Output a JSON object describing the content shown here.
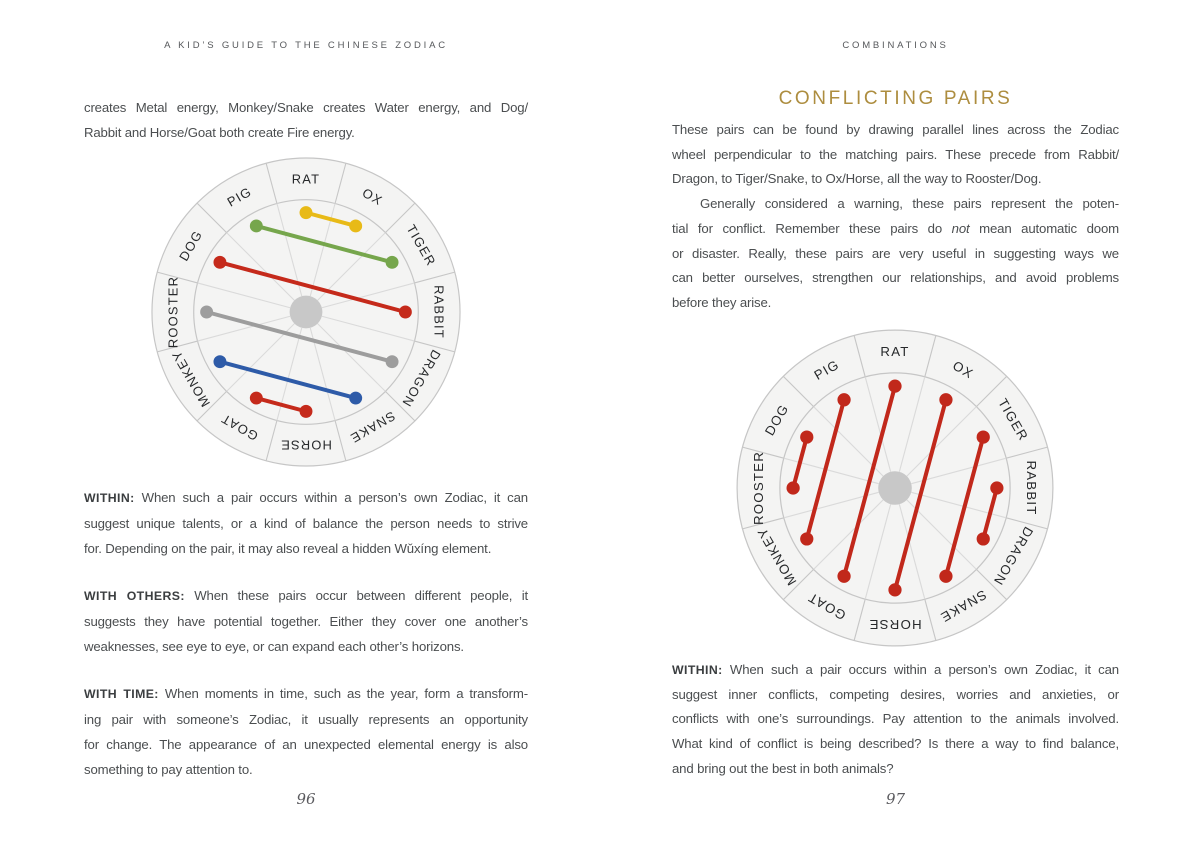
{
  "colors": {
    "accent_gold": "#ad8d3f",
    "body_text": "#4b4e50",
    "wheel_fill": "#f4f4f3",
    "wheel_stroke": "#c6c6c6",
    "wheel_spoke": "#dadada",
    "wheel_hub": "#c8c8c8",
    "pair_red": "#c52a1b",
    "pair_yellow": "#e8ba17",
    "pair_green": "#76a64c",
    "pair_gray": "#9d9d9d",
    "pair_blue": "#2e5ba8"
  },
  "left_page": {
    "header": "A KID’S GUIDE TO THE CHINESE ZODIAC",
    "intro": {
      "lines": [
        [
          "creates Metal energy, Monkey/Snake creates Water energy, and Dog/"
        ],
        [
          "Rabbit and Horse/Goat both create Fire energy."
        ]
      ]
    },
    "wheel": {
      "name": "transforming-pairs-wheel",
      "labels": [
        "RAT",
        "OX",
        "TIGER",
        "RABBIT",
        "DRAGON",
        "SNAKE",
        "HORSE",
        "GOAT",
        "MONKEY",
        "ROOSTER",
        "DOG",
        "PIG"
      ],
      "pairs": [
        {
          "from": "RAT",
          "to": "OX",
          "color": "#e8ba17"
        },
        {
          "from": "PIG",
          "to": "TIGER",
          "color": "#76a64c"
        },
        {
          "from": "DOG",
          "to": "RABBIT",
          "color": "#c52a1b"
        },
        {
          "from": "ROOSTER",
          "to": "DRAGON",
          "color": "#9d9d9d"
        },
        {
          "from": "MONKEY",
          "to": "SNAKE",
          "color": "#2e5ba8"
        },
        {
          "from": "GOAT",
          "to": "HORSE",
          "color": "#c52a1b"
        }
      ]
    },
    "sections": [
      {
        "label": "WITHIN:",
        "lines": [
          [
            "When such a pair occurs within a person’s own Zodiac, it can"
          ],
          [
            "suggest unique talents, or a kind of balance the person needs to strive"
          ],
          [
            "for. Depending on the pair, it may also reveal a hidden Wǔxíng element."
          ]
        ]
      },
      {
        "label": "WITH OTHERS:",
        "lines": [
          [
            "When these pairs occur between different people, it"
          ],
          [
            "suggests they have potential together. Either they cover one another’s"
          ],
          [
            "weaknesses, see eye to eye, or can expand each other’s horizons."
          ]
        ]
      },
      {
        "label": "WITH TIME:",
        "lines": [
          [
            "When moments in time, such as the year, form a transform-"
          ],
          [
            "ing pair with someone’s Zodiac, it usually represents an opportunity"
          ],
          [
            "for change. The appearance of an unexpected elemental energy is also"
          ],
          [
            "something to pay attention to."
          ]
        ]
      }
    ],
    "page_number": "96"
  },
  "right_page": {
    "header": "COMBINATIONS",
    "title": "CONFLICTING PAIRS",
    "paragraphs": [
      {
        "lines": [
          [
            "These pairs can be found by drawing parallel lines across the Zodiac"
          ],
          [
            "wheel perpendicular to the matching pairs. These precede from Rabbit/"
          ],
          [
            "Dragon, to Tiger/Snake, to Ox/Horse, all the way to Rooster/Dog."
          ]
        ]
      },
      {
        "indent": true,
        "lines": [
          [
            "Generally considered a warning, these pairs represent the poten-"
          ],
          [
            "tial for conflict. Remember these pairs do ",
            {
              "t": "not",
              "i": true
            },
            " mean automatic doom"
          ],
          [
            "or disaster. Really, these pairs are very useful in suggesting ways we"
          ],
          [
            "can better ourselves, strengthen our relationships, and avoid problems"
          ],
          [
            "before they arise."
          ]
        ]
      }
    ],
    "wheel": {
      "name": "conflicting-pairs-wheel",
      "labels": [
        "RAT",
        "OX",
        "TIGER",
        "RABBIT",
        "DRAGON",
        "SNAKE",
        "HORSE",
        "GOAT",
        "MONKEY",
        "ROOSTER",
        "DOG",
        "PIG"
      ],
      "pairs": [
        {
          "from": "DOG",
          "to": "ROOSTER",
          "color": "#c1281b"
        },
        {
          "from": "PIG",
          "to": "MONKEY",
          "color": "#c1281b"
        },
        {
          "from": "RAT",
          "to": "GOAT",
          "color": "#c1281b"
        },
        {
          "from": "OX",
          "to": "HORSE",
          "color": "#c1281b"
        },
        {
          "from": "TIGER",
          "to": "SNAKE",
          "color": "#c1281b"
        },
        {
          "from": "RABBIT",
          "to": "DRAGON",
          "color": "#c1281b"
        }
      ]
    },
    "sections": [
      {
        "label": "WITHIN:",
        "lines": [
          [
            "When such a pair occurs within a person’s own Zodiac, it can"
          ],
          [
            "suggest inner conflicts, competing desires, worries and anxieties, or"
          ],
          [
            "conflicts with one’s surroundings. Pay attention to the animals involved."
          ],
          [
            "What kind of conflict is being described? Is there a way to find balance,"
          ],
          [
            "and bring out the best in both animals?"
          ]
        ]
      }
    ],
    "page_number": "97"
  }
}
